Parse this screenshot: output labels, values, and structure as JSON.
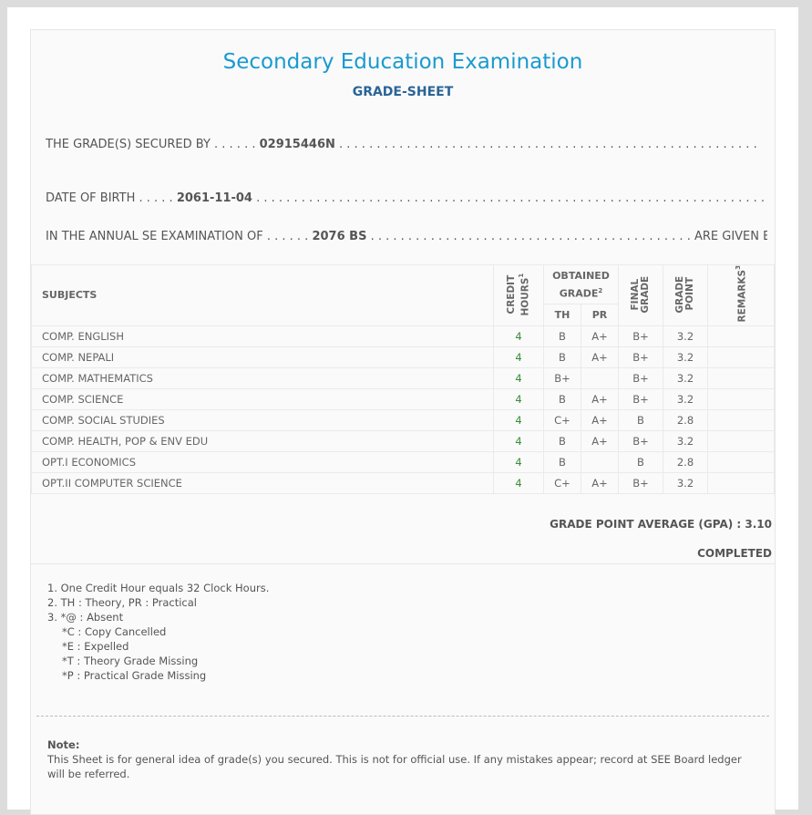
{
  "title": "Secondary Education Examination",
  "subtitle": "GRADE-SHEET",
  "secured_by": {
    "label": "THE GRADE(S) SECURED BY . . . . . .",
    "value": "02915446N"
  },
  "dob": {
    "label": "DATE OF BIRTH . . . . .",
    "value": "2061-11-04"
  },
  "exam": {
    "label": "IN THE ANNUAL SE EXAMINATION OF . . . . . .",
    "value": "2076 BS",
    "suffix": "ARE GIVEN BELOW"
  },
  "headers": {
    "subjects": "SUBJECTS",
    "credit": "CREDIT HOURS",
    "credit_sup": "1",
    "obtained": "OBTAINED GRADE",
    "obtained_sup": "2",
    "th": "TH",
    "pr": "PR",
    "final": "FINAL GRADE",
    "gp": "GRADE POINT",
    "remarks": "REMARKS",
    "remarks_sup": "3"
  },
  "rows": [
    {
      "subject": "COMP. ENGLISH",
      "credit": "4",
      "th": "B",
      "pr": "A+",
      "final": "B+",
      "gp": "3.2",
      "remarks": ""
    },
    {
      "subject": "COMP. NEPALI",
      "credit": "4",
      "th": "B",
      "pr": "A+",
      "final": "B+",
      "gp": "3.2",
      "remarks": ""
    },
    {
      "subject": "COMP. MATHEMATICS",
      "credit": "4",
      "th": "B+",
      "pr": "",
      "final": "B+",
      "gp": "3.2",
      "remarks": ""
    },
    {
      "subject": "COMP. SCIENCE",
      "credit": "4",
      "th": "B",
      "pr": "A+",
      "final": "B+",
      "gp": "3.2",
      "remarks": ""
    },
    {
      "subject": "COMP. SOCIAL STUDIES",
      "credit": "4",
      "th": "C+",
      "pr": "A+",
      "final": "B",
      "gp": "2.8",
      "remarks": ""
    },
    {
      "subject": "COMP. HEALTH, POP & ENV EDU",
      "credit": "4",
      "th": "B",
      "pr": "A+",
      "final": "B+",
      "gp": "3.2",
      "remarks": ""
    },
    {
      "subject": "OPT.I ECONOMICS",
      "credit": "4",
      "th": "B",
      "pr": "",
      "final": "B",
      "gp": "2.8",
      "remarks": ""
    },
    {
      "subject": "OPT.II COMPUTER SCIENCE",
      "credit": "4",
      "th": "C+",
      "pr": "A+",
      "final": "B+",
      "gp": "3.2",
      "remarks": ""
    }
  ],
  "gpa": "GRADE POINT AVERAGE (GPA) : 3.10",
  "status": "COMPLETED",
  "footnotes": [
    "1. One Credit Hour equals 32 Clock Hours.",
    "2. TH : Theory, PR : Practical",
    "3. *@ : Absent",
    "*C : Copy Cancelled",
    "*E : Expelled",
    "*T : Theory Grade Missing",
    "*P : Practical Grade Missing"
  ],
  "note": {
    "label": "Note:",
    "text": "This Sheet is for general idea of grade(s) you secured. This is not for official use. If any mistakes appear; record at SEE Board ledger will be referred."
  },
  "colors": {
    "title": "#1a9ad0",
    "subtitle": "#2a6496",
    "credit": "#3a8a3a"
  }
}
